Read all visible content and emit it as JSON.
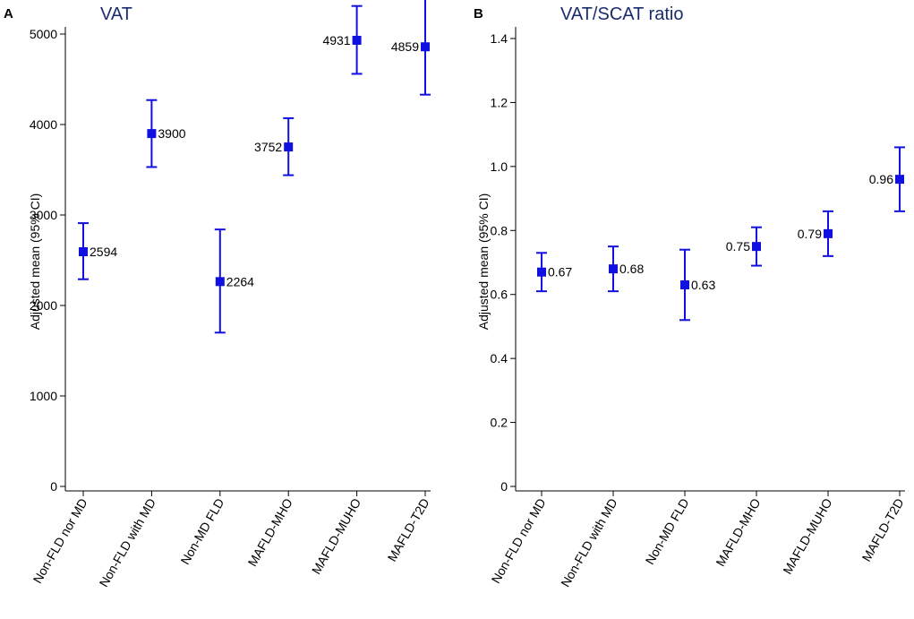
{
  "chart_data": [
    {
      "type": "scatter",
      "panel": "A",
      "title": "VAT",
      "xlabel": "",
      "ylabel": "Adjusted mean (95% CI)",
      "ylim": [
        0,
        5400
      ],
      "yticks": [
        0,
        1000,
        2000,
        3000,
        4000,
        5000
      ],
      "grid": false,
      "categories": [
        "Non-FLD nor MD",
        "Non-FLD with MD",
        "Non-MD FLD",
        "MAFLD-MHO",
        "MAFLD-MUHO",
        "MAFLD-T2D"
      ],
      "points": [
        {
          "mean": 2594,
          "lower": 2290,
          "upper": 2910,
          "label": "2594",
          "label_side": "right"
        },
        {
          "mean": 3900,
          "lower": 3530,
          "upper": 4270,
          "label": "3900",
          "label_side": "right"
        },
        {
          "mean": 2264,
          "lower": 1700,
          "upper": 2840,
          "label": "2264",
          "label_side": "right"
        },
        {
          "mean": 3752,
          "lower": 3440,
          "upper": 4070,
          "label": "3752",
          "label_side": "left"
        },
        {
          "mean": 4931,
          "lower": 4560,
          "upper": 5310,
          "label": "4931",
          "label_side": "left"
        },
        {
          "mean": 4859,
          "lower": 4330,
          "upper": 5400,
          "label": "4859",
          "label_side": "left"
        }
      ]
    },
    {
      "type": "scatter",
      "panel": "B",
      "title": "VAT/SCAT ratio",
      "xlabel": "",
      "ylabel": "Adjusted mean (95% CI)",
      "ylim": [
        0,
        1.4
      ],
      "yticks": [
        "0",
        "0.2",
        "0.4",
        "0.6",
        "0.8",
        "1.0",
        "1.2",
        "1.4"
      ],
      "grid": false,
      "categories": [
        "Non-FLD nor MD",
        "Non-FLD with MD",
        "Non-MD FLD",
        "MAFLD-MHO",
        "MAFLD-MUHO",
        "MAFLD-T2D"
      ],
      "points": [
        {
          "mean": 0.67,
          "lower": 0.61,
          "upper": 0.73,
          "label": "0.67",
          "label_side": "right"
        },
        {
          "mean": 0.68,
          "lower": 0.61,
          "upper": 0.75,
          "label": "0.68",
          "label_side": "right"
        },
        {
          "mean": 0.63,
          "lower": 0.52,
          "upper": 0.74,
          "label": "0.63",
          "label_side": "right"
        },
        {
          "mean": 0.75,
          "lower": 0.69,
          "upper": 0.81,
          "label": "0.75",
          "label_side": "left"
        },
        {
          "mean": 0.79,
          "lower": 0.72,
          "upper": 0.86,
          "label": "0.79",
          "label_side": "left"
        },
        {
          "mean": 0.96,
          "lower": 0.86,
          "upper": 1.06,
          "label": "0.96",
          "label_side": "left"
        }
      ]
    }
  ]
}
